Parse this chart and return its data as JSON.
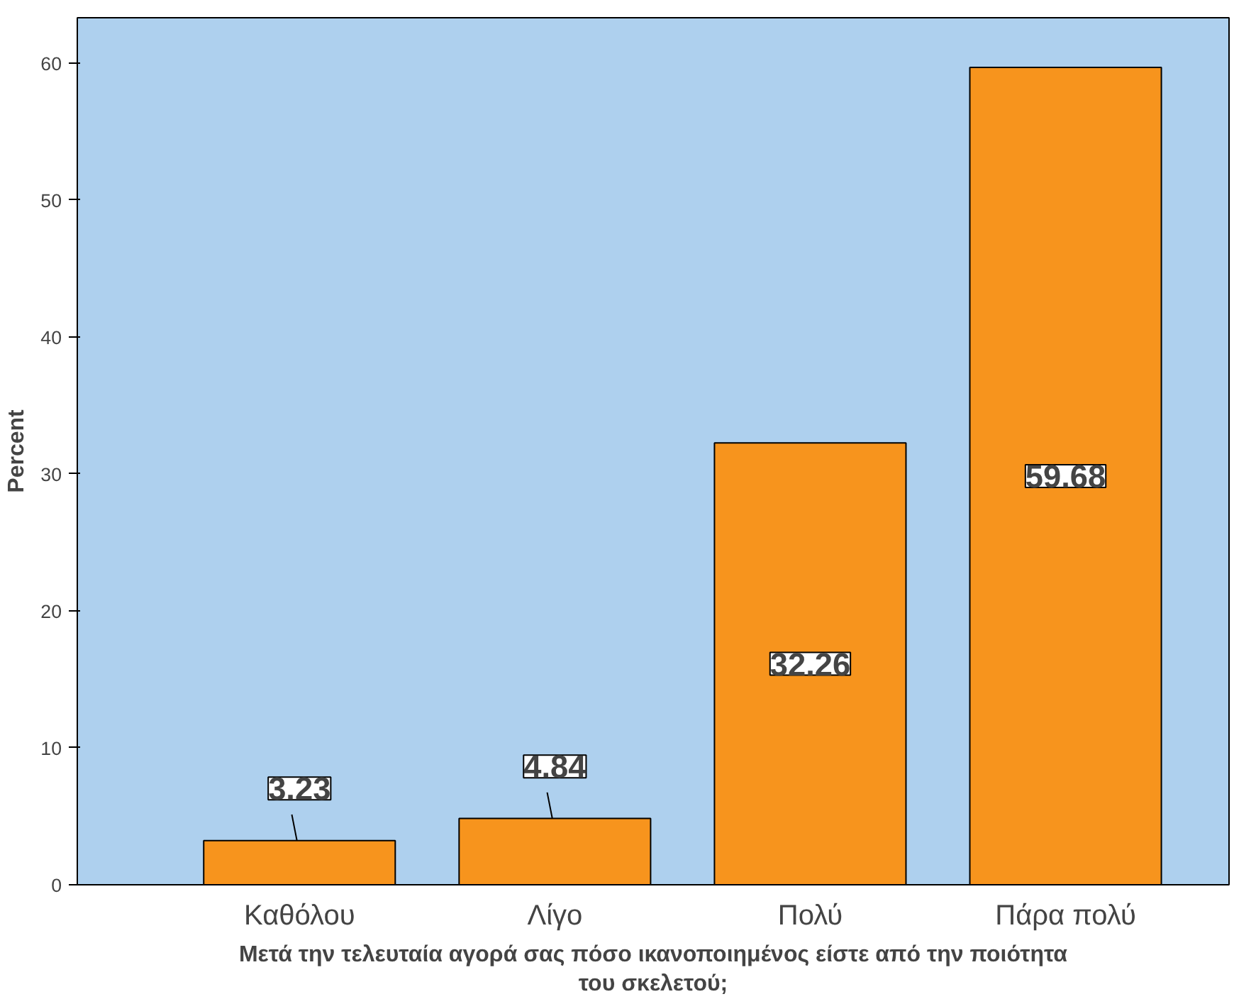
{
  "chart_data": {
    "type": "bar",
    "categories": [
      "Καθόλου",
      "Λίγο",
      "Πολύ",
      "Πάρα πολύ"
    ],
    "values": [
      3.23,
      4.84,
      32.26,
      59.68
    ],
    "color": "#f7941d",
    "xlabel": "Μετά την τελευταία αγορά σας πόσο ικανοποιημένος είστε από την ποιότητα\nτου σκελετού;",
    "ylabel": "Percent",
    "ylim": [
      0,
      63.3
    ],
    "yticks": [
      0,
      10,
      20,
      30,
      40,
      50,
      60
    ],
    "grid": false,
    "data_labels": true
  }
}
